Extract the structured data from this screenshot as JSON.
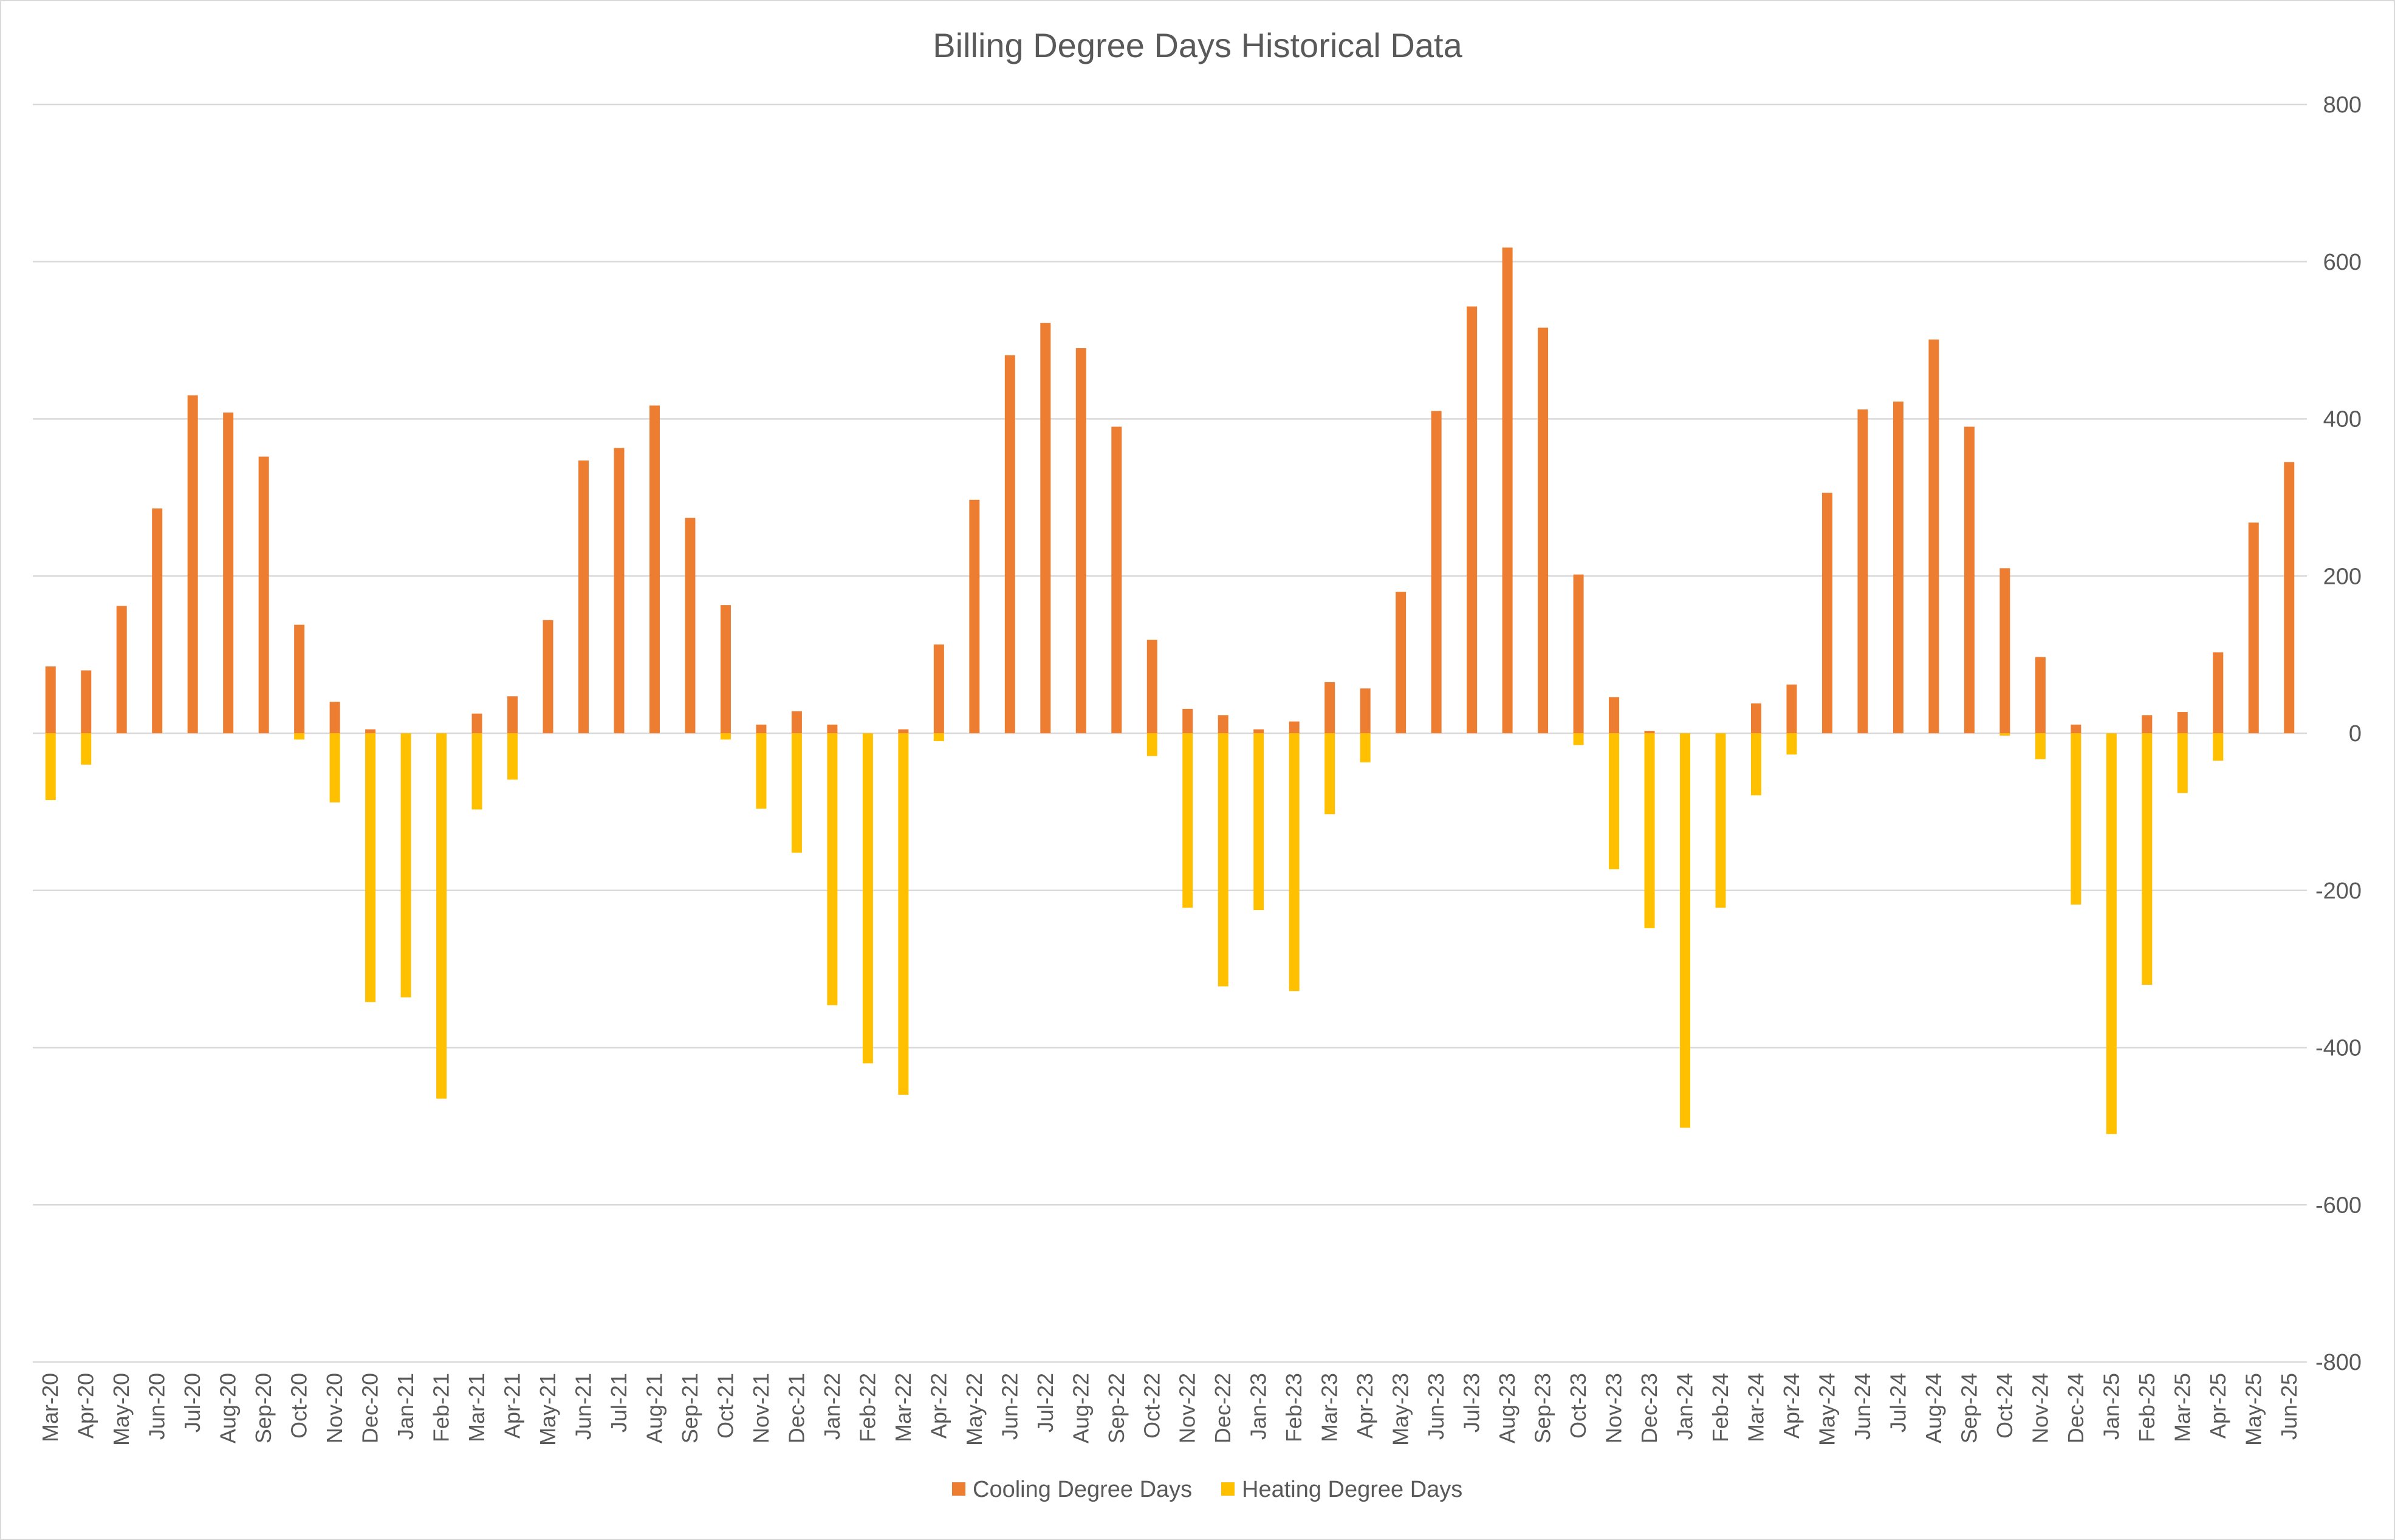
{
  "chart_data": {
    "type": "bar",
    "title": "Billing Degree Days Historical Data",
    "xlabel": "",
    "ylabel": "",
    "ylim": [
      -800,
      800
    ],
    "yticks": [
      -800,
      -600,
      -400,
      -200,
      0,
      200,
      400,
      600,
      800
    ],
    "y_axis_position": "right",
    "grid": true,
    "legend_position": "bottom",
    "categories": [
      "Mar-20",
      "Apr-20",
      "May-20",
      "Jun-20",
      "Jul-20",
      "Aug-20",
      "Sep-20",
      "Oct-20",
      "Nov-20",
      "Dec-20",
      "Jan-21",
      "Feb-21",
      "Mar-21",
      "Apr-21",
      "May-21",
      "Jun-21",
      "Jul-21",
      "Aug-21",
      "Sep-21",
      "Oct-21",
      "Nov-21",
      "Dec-21",
      "Jan-22",
      "Feb-22",
      "Mar-22",
      "Apr-22",
      "May-22",
      "Jun-22",
      "Jul-22",
      "Aug-22",
      "Sep-22",
      "Oct-22",
      "Nov-22",
      "Dec-22",
      "Jan-23",
      "Feb-23",
      "Mar-23",
      "Apr-23",
      "May-23",
      "Jun-23",
      "Jul-23",
      "Aug-23",
      "Sep-23",
      "Oct-23",
      "Nov-23",
      "Dec-23",
      "Jan-24",
      "Feb-24",
      "Mar-24",
      "Apr-24",
      "May-24",
      "Jun-24",
      "Jul-24",
      "Aug-24",
      "Sep-24",
      "Oct-24",
      "Nov-24",
      "Dec-24",
      "Jan-25",
      "Feb-25",
      "Mar-25",
      "Apr-25",
      "May-25",
      "Jun-25"
    ],
    "series": [
      {
        "name": "Cooling Degree Days",
        "color": "#ED7D31",
        "values": [
          85,
          80,
          162,
          286,
          430,
          408,
          352,
          138,
          40,
          5,
          0,
          0,
          25,
          47,
          144,
          347,
          363,
          417,
          274,
          163,
          11,
          28,
          11,
          0,
          5,
          113,
          297,
          481,
          522,
          490,
          390,
          119,
          31,
          23,
          5,
          15,
          65,
          57,
          180,
          410,
          543,
          618,
          516,
          202,
          46,
          3,
          0,
          0,
          38,
          62,
          306,
          412,
          422,
          501,
          390,
          210,
          97,
          11,
          0,
          23,
          27,
          103,
          268,
          345
        ]
      },
      {
        "name": "Heating Degree Days",
        "color": "#FFC000",
        "values": [
          -85,
          -40,
          0,
          0,
          0,
          0,
          0,
          -8,
          -88,
          -342,
          -336,
          -465,
          -97,
          -59,
          0,
          0,
          0,
          0,
          0,
          -8,
          -96,
          -152,
          -346,
          -420,
          -460,
          -10,
          0,
          0,
          0,
          0,
          0,
          -29,
          -222,
          -322,
          -225,
          -328,
          -103,
          -37,
          0,
          0,
          0,
          0,
          0,
          -15,
          -173,
          -248,
          -502,
          -222,
          -79,
          -27,
          0,
          0,
          0,
          0,
          0,
          -3,
          -33,
          -218,
          -510,
          -320,
          -76,
          -35,
          0,
          0
        ]
      }
    ]
  }
}
